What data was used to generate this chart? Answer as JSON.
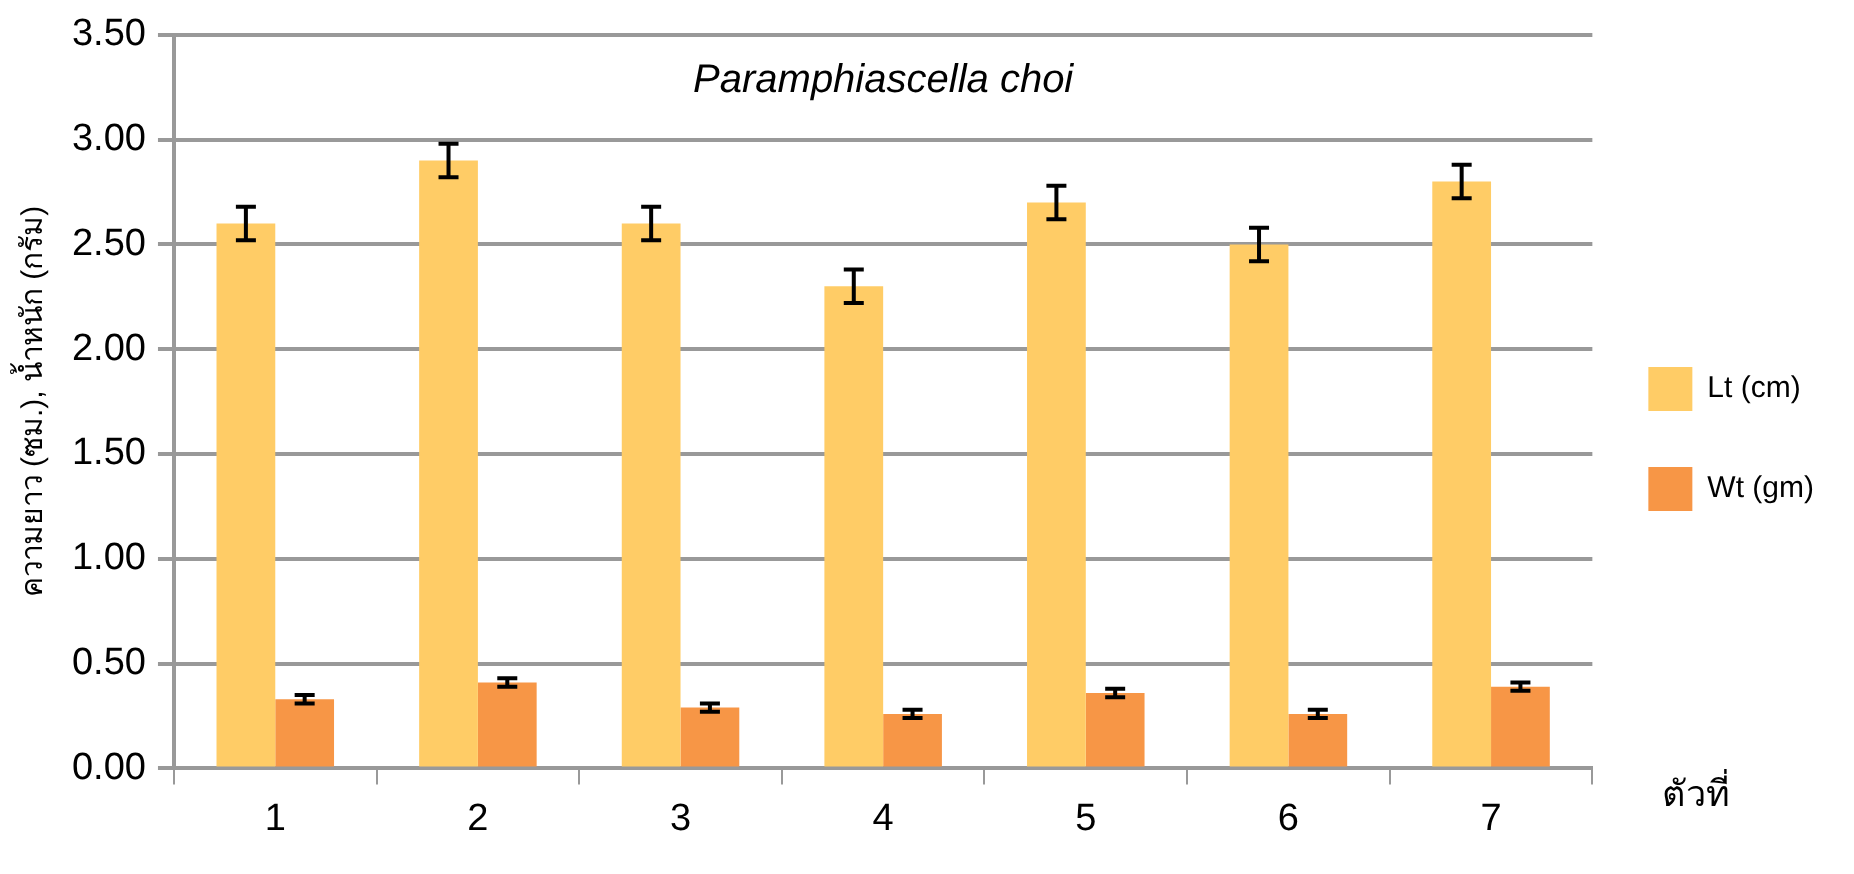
{
  "chart_data": {
    "type": "bar",
    "title": "Paramphiascella choi",
    "xlabel": "ตัวที่",
    "ylabel": "ความยาว (ซม.), น้ำหนัก (กรัม)",
    "categories": [
      "1",
      "2",
      "3",
      "4",
      "5",
      "6",
      "7"
    ],
    "series": [
      {
        "name": "Lt (cm)",
        "color": "#ffcc66",
        "values": [
          2.6,
          2.9,
          2.6,
          2.3,
          2.7,
          2.5,
          2.8
        ],
        "errors": [
          0.08,
          0.08,
          0.08,
          0.08,
          0.08,
          0.08,
          0.08
        ]
      },
      {
        "name": "Wt (gm)",
        "color": "#f79646",
        "values": [
          0.33,
          0.41,
          0.29,
          0.26,
          0.36,
          0.26,
          0.39
        ],
        "errors": [
          0.02,
          0.02,
          0.02,
          0.02,
          0.02,
          0.02,
          0.02
        ]
      }
    ],
    "ylim": [
      0,
      3.5
    ],
    "yticks": [
      {
        "value": 0,
        "label": "0.00"
      },
      {
        "value": 0.5,
        "label": "0.50"
      },
      {
        "value": 1,
        "label": "1.00"
      },
      {
        "value": 1.5,
        "label": "1.50"
      },
      {
        "value": 2,
        "label": "2.00"
      },
      {
        "value": 2.5,
        "label": "2.50"
      },
      {
        "value": 3,
        "label": "3.00"
      },
      {
        "value": 3.5,
        "label": "3.50"
      }
    ],
    "grid": "y",
    "legend": "right"
  }
}
